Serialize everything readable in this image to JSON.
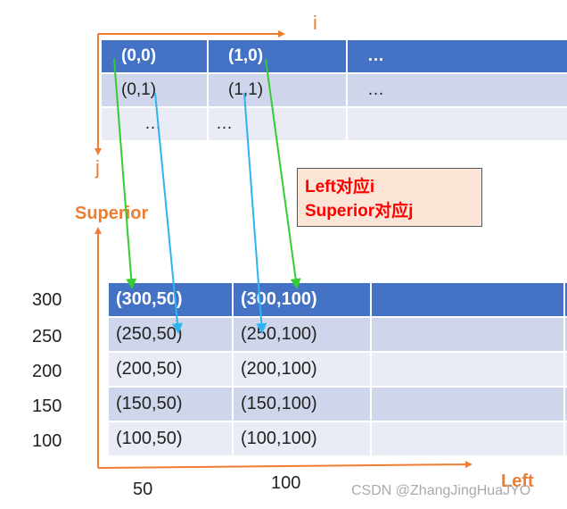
{
  "top_axis": {
    "x_label": "i",
    "y_label": "j"
  },
  "top_table": {
    "rows": [
      [
        "(0,0)",
        "(1,0)",
        "…"
      ],
      [
        "(0,1)",
        "(1,1)",
        "…"
      ],
      [
        "…",
        "…",
        ""
      ]
    ]
  },
  "note": {
    "line1": "Left对应i",
    "line2": "Superior对应j"
  },
  "bottom_axis": {
    "y_label": "Superior",
    "x_label": "Left",
    "y_ticks": [
      "300",
      "250",
      "200",
      "150",
      "100"
    ],
    "x_ticks": [
      "50",
      "100"
    ]
  },
  "bottom_table": {
    "rows": [
      [
        "(300,50)",
        "(300,100)",
        "",
        ""
      ],
      [
        "(250,50)",
        "(250,100)",
        "",
        ""
      ],
      [
        "(200,50)",
        "(200,100)",
        "",
        ""
      ],
      [
        "(150,50)",
        "(150,100)",
        "",
        ""
      ],
      [
        "(100,50)",
        "(100,100)",
        "",
        ""
      ]
    ]
  },
  "watermark": "CSDN @ZhangJingHuaJYO",
  "colors": {
    "axis": "#ed7d31",
    "header": "#4472c4",
    "green_arrow": "#33cc33",
    "blue_arrow": "#2fb4f0",
    "note_text": "#ff0000"
  }
}
